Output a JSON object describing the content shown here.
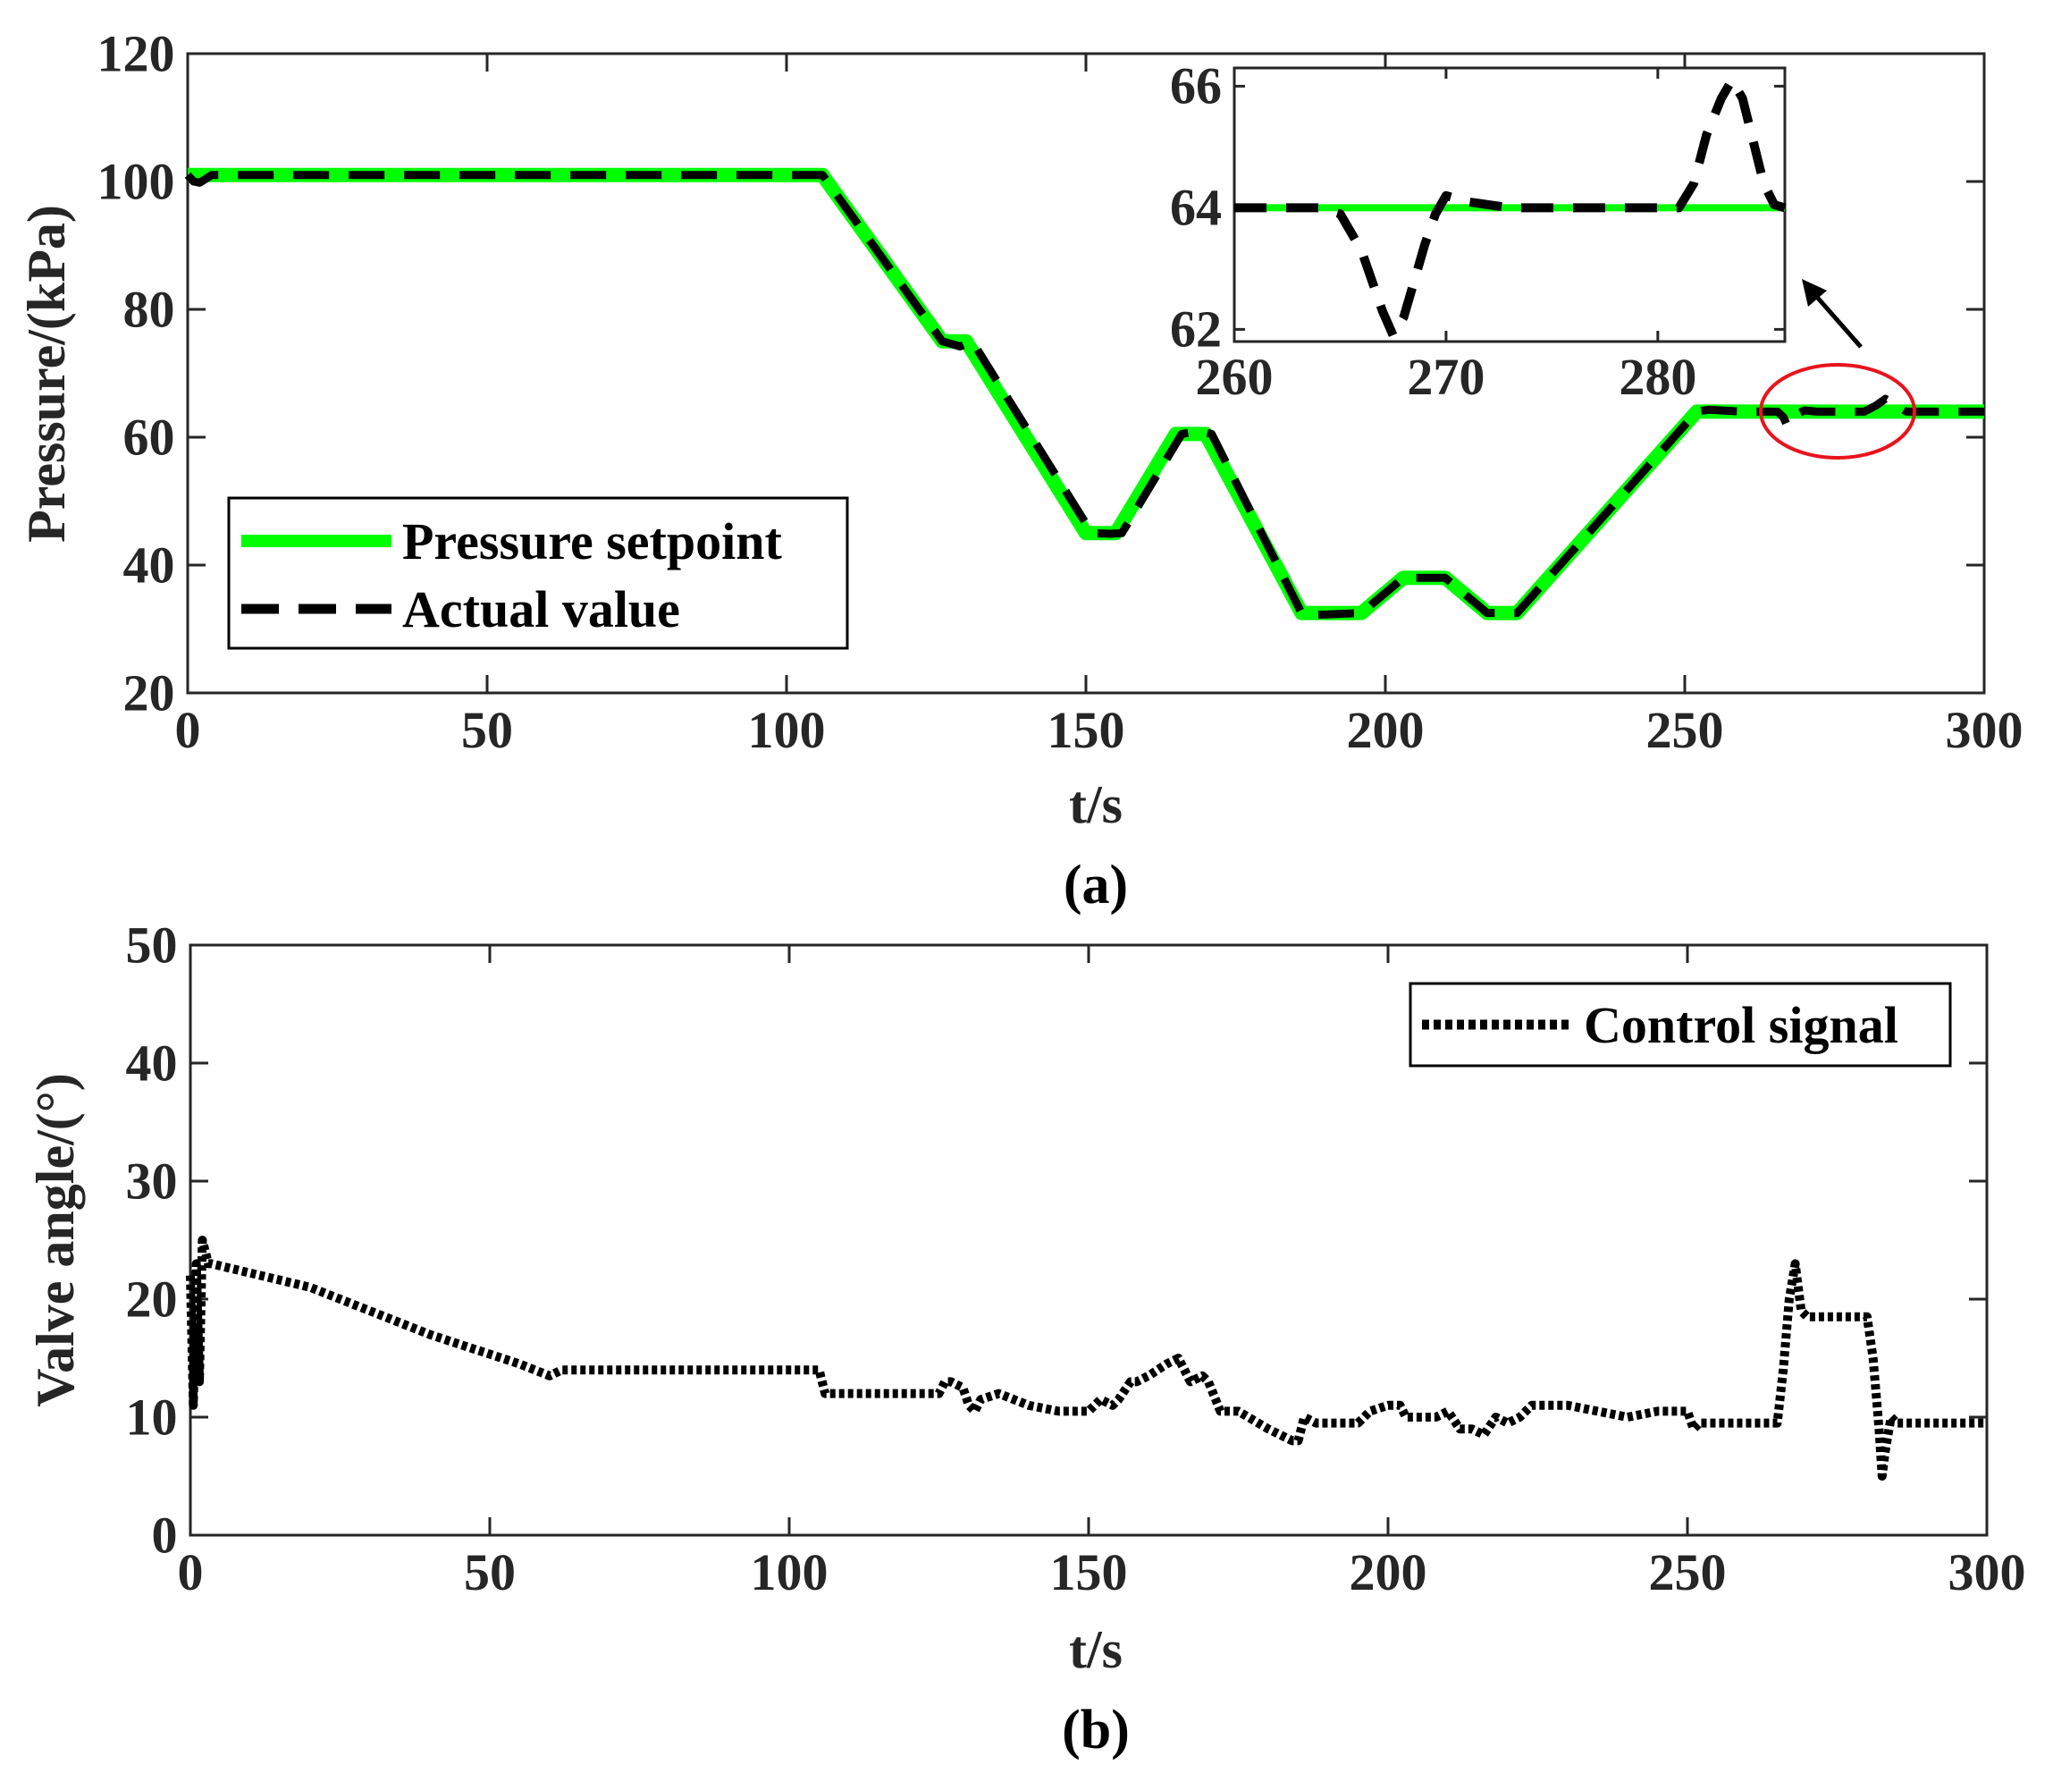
{
  "colors": {
    "setpoint": "#00ff00",
    "actual": "#000000",
    "control": "#000000",
    "highlight_ellipse": "#e8141c",
    "axis": "#262626"
  },
  "chart_data": [
    {
      "id": "a",
      "type": "line",
      "caption": "(a)",
      "xlabel": "t/s",
      "ylabel": "Pressure/(kPa)",
      "xlim": [
        0,
        300
      ],
      "ylim": [
        20,
        120
      ],
      "xticks": [
        0,
        50,
        100,
        150,
        200,
        250,
        300
      ],
      "yticks": [
        20,
        40,
        60,
        80,
        100,
        120
      ],
      "grid": false,
      "legend_position": "lower-left",
      "series": [
        {
          "name": "Pressure setpoint",
          "style": "solid-green",
          "x": [
            0,
            106,
            126,
            130,
            150,
            155,
            165,
            170,
            186,
            196,
            203,
            210,
            217,
            222,
            252,
            300
          ],
          "y": [
            101,
            101,
            75,
            75,
            45,
            45,
            60.5,
            60.5,
            32.5,
            32.5,
            38,
            38,
            32.5,
            32.5,
            64,
            64
          ]
        },
        {
          "name": "Actual value",
          "style": "dashed-black",
          "x": [
            0,
            1,
            2,
            4,
            106,
            126,
            129,
            131,
            151,
            154,
            156,
            166,
            169,
            171,
            186,
            188,
            196,
            203,
            210,
            217,
            222,
            252,
            254,
            260,
            265.5,
            266.5,
            267,
            267.5,
            268.5,
            270,
            272,
            280,
            282,
            283.5,
            285,
            287,
            300
          ],
          "y": [
            101,
            100,
            99.8,
            101,
            101,
            75,
            74.2,
            75,
            45,
            44.9,
            45,
            60.5,
            61,
            60.5,
            32.5,
            32.2,
            32.5,
            38,
            38,
            32.5,
            32.5,
            64,
            64.3,
            64,
            64,
            63.1,
            62,
            62.3,
            63.5,
            64.2,
            64,
            64,
            65,
            66,
            65.2,
            64,
            64
          ]
        }
      ],
      "inset": {
        "xlim": [
          260,
          286
        ],
        "ylim": [
          61.8,
          66.3
        ],
        "xticks": [
          260,
          270,
          280
        ],
        "yticks": [
          62,
          64,
          66
        ],
        "series": [
          {
            "name": "Pressure setpoint",
            "x": [
              260,
              286
            ],
            "y": [
              64,
              64
            ]
          },
          {
            "name": "Actual value",
            "x": [
              260,
              264,
              265,
              266,
              266.5,
              267,
              267.5,
              268,
              268.5,
              269,
              269.5,
              270,
              271,
              273,
              281,
              281.7,
              282.3,
              283,
              283.5,
              284,
              284.5,
              285,
              285.5,
              286
            ],
            "y": [
              64,
              64,
              63.9,
              63.3,
              62.8,
              62.3,
              61.9,
              62.2,
              62.8,
              63.4,
              63.9,
              64.2,
              64.1,
              64,
              64,
              64.4,
              65.2,
              65.8,
              66.1,
              65.8,
              65.1,
              64.4,
              64.05,
              64
            ]
          }
        ]
      }
    },
    {
      "id": "b",
      "type": "line",
      "caption": "(b)",
      "xlabel": "t/s",
      "ylabel": "Valve angle/(°)",
      "xlim": [
        0,
        300
      ],
      "ylim": [
        0,
        50
      ],
      "xticks": [
        0,
        50,
        100,
        150,
        200,
        250,
        300
      ],
      "yticks": [
        0,
        10,
        20,
        30,
        40,
        50
      ],
      "grid": false,
      "legend_position": "top-right",
      "series": [
        {
          "name": "Control signal",
          "style": "dotted-black",
          "x": [
            0,
            0.5,
            1,
            1.5,
            2,
            2.5,
            3,
            3.5,
            20,
            40,
            55,
            60,
            62,
            80,
            105,
            106,
            108,
            125,
            126,
            127,
            129,
            130,
            131,
            132,
            135,
            140,
            145,
            150,
            152,
            154,
            155,
            157,
            158,
            160,
            163,
            165,
            167,
            169,
            170,
            172,
            175,
            180,
            184,
            185,
            186,
            188,
            195,
            197,
            200,
            202,
            203,
            205,
            208,
            210,
            212,
            214,
            216,
            218,
            220,
            222,
            224,
            226,
            230,
            240,
            245,
            250,
            251,
            252,
            253,
            255,
            265,
            266,
            267,
            268,
            269,
            270,
            275,
            280,
            281,
            282,
            282.5,
            283,
            283.5,
            284,
            285,
            290,
            300
          ],
          "y": [
            22,
            11,
            23,
            13,
            25,
            24,
            23,
            23,
            21,
            17,
            14.5,
            13.5,
            14,
            14,
            14,
            12,
            12,
            12,
            13,
            13,
            12.5,
            11,
            10.5,
            11.5,
            12,
            11,
            10.5,
            10.5,
            11.5,
            11,
            11.5,
            13,
            13,
            13.5,
            14.5,
            15,
            13,
            13.5,
            13,
            10.5,
            10.5,
            9,
            8,
            8,
            10,
            9.5,
            9.5,
            10.5,
            11,
            11,
            10,
            10,
            10,
            10.5,
            9,
            9,
            8.5,
            10,
            9.5,
            10,
            11,
            11,
            11,
            10,
            10.5,
            10.5,
            9,
            9.5,
            9.5,
            9.5,
            9.5,
            14,
            20,
            23,
            19,
            18.5,
            18.5,
            18.5,
            15,
            9,
            5,
            7,
            8.5,
            10,
            9.5,
            9.5,
            9.5
          ]
        }
      ]
    }
  ]
}
